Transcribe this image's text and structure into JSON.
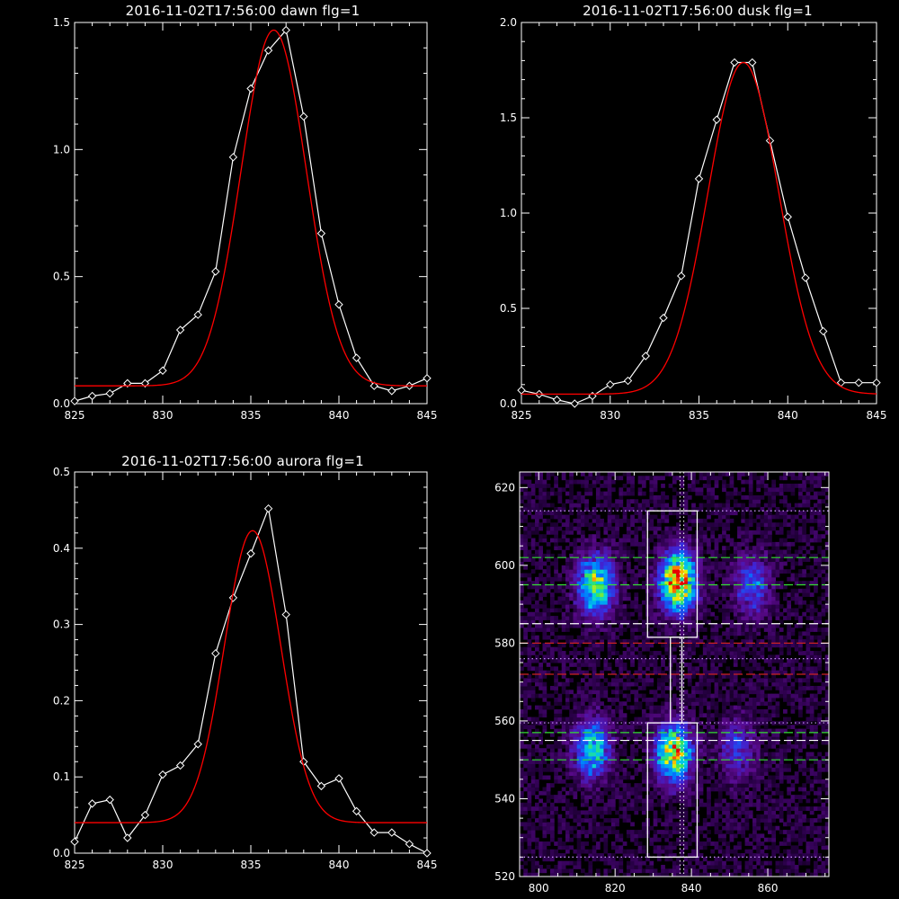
{
  "chart_data": [
    {
      "id": "dawn",
      "type": "line",
      "title": "2016-11-02T17:56:00 dawn flg=1",
      "xlim": [
        825,
        845
      ],
      "ylim": [
        0,
        1.5
      ],
      "xticks": [
        825,
        830,
        835,
        840,
        845
      ],
      "yticks": [
        0.0,
        0.5,
        1.0,
        1.5
      ],
      "ytick_labels": [
        "0.0",
        "0.5",
        "1.0",
        "1.5"
      ],
      "series": [
        {
          "kind": "observed",
          "color": "#ffffff",
          "marker": "diamond",
          "x": [
            825,
            826,
            827,
            828,
            829,
            830,
            831,
            832,
            833,
            834,
            835,
            836,
            837,
            838,
            839,
            840,
            841,
            842,
            843,
            844,
            845
          ],
          "y": [
            0.01,
            0.03,
            0.04,
            0.08,
            0.08,
            0.13,
            0.29,
            0.35,
            0.52,
            0.97,
            1.24,
            1.39,
            1.47,
            1.13,
            0.67,
            0.39,
            0.18,
            0.07,
            0.05,
            0.07,
            0.1
          ]
        },
        {
          "kind": "gaussian-fit",
          "color": "#ff0000",
          "center": 836.3,
          "amplitude": 1.4,
          "sigma": 1.85,
          "baseline": 0.07
        }
      ]
    },
    {
      "id": "dusk",
      "type": "line",
      "title": "2016-11-02T17:56:00 dusk flg=1",
      "xlim": [
        825,
        845
      ],
      "ylim": [
        0,
        2.0
      ],
      "xticks": [
        825,
        830,
        835,
        840,
        845
      ],
      "yticks": [
        0.0,
        0.5,
        1.0,
        1.5,
        2.0
      ],
      "ytick_labels": [
        "0.0",
        "0.5",
        "1.0",
        "1.5",
        "2.0"
      ],
      "series": [
        {
          "kind": "observed",
          "color": "#ffffff",
          "marker": "diamond",
          "x": [
            825,
            826,
            827,
            828,
            829,
            830,
            831,
            832,
            833,
            834,
            835,
            836,
            837,
            838,
            839,
            840,
            841,
            842,
            843,
            844,
            845
          ],
          "y": [
            0.07,
            0.05,
            0.02,
            0.0,
            0.04,
            0.1,
            0.12,
            0.25,
            0.45,
            0.67,
            1.18,
            1.49,
            1.79,
            1.79,
            1.38,
            0.98,
            0.66,
            0.38,
            0.11,
            0.11,
            0.11
          ]
        },
        {
          "kind": "gaussian-fit",
          "color": "#ff0000",
          "center": 837.5,
          "amplitude": 1.74,
          "sigma": 2.0,
          "baseline": 0.05
        }
      ]
    },
    {
      "id": "aurora",
      "type": "line",
      "title": "2016-11-02T17:56:00 aurora flg=1",
      "xlim": [
        825,
        845
      ],
      "ylim": [
        0,
        0.5
      ],
      "xticks": [
        825,
        830,
        835,
        840,
        845
      ],
      "yticks": [
        0.0,
        0.1,
        0.2,
        0.3,
        0.4,
        0.5
      ],
      "ytick_labels": [
        "0.0",
        "0.1",
        "0.2",
        "0.3",
        "0.4",
        "0.5"
      ],
      "series": [
        {
          "kind": "observed",
          "color": "#ffffff",
          "marker": "diamond",
          "x": [
            825,
            826,
            827,
            828,
            829,
            830,
            831,
            832,
            833,
            834,
            835,
            836,
            837,
            838,
            839,
            840,
            841,
            842,
            843,
            844,
            845
          ],
          "y": [
            0.015,
            0.065,
            0.07,
            0.02,
            0.05,
            0.103,
            0.115,
            0.143,
            0.262,
            0.335,
            0.393,
            0.452,
            0.313,
            0.12,
            0.088,
            0.098,
            0.055,
            0.027,
            0.027,
            0.012,
            0.0
          ]
        },
        {
          "kind": "gaussian-fit",
          "color": "#ff0000",
          "center": 835.1,
          "amplitude": 0.383,
          "sigma": 1.6,
          "baseline": 0.04
        }
      ]
    },
    {
      "id": "spectral-image",
      "type": "heatmap",
      "xlim": [
        795,
        876
      ],
      "ylim": [
        520,
        624
      ],
      "xticks": [
        800,
        820,
        840,
        860
      ],
      "yticks": [
        520,
        540,
        560,
        580,
        600,
        620
      ],
      "colormap": "rainbow-on-black",
      "blobs": [
        {
          "x": 815,
          "y": 595,
          "peak": 0.75
        },
        {
          "x": 836.5,
          "y": 596,
          "peak": 1.0
        },
        {
          "x": 856,
          "y": 595,
          "peak": 0.38
        },
        {
          "x": 814,
          "y": 553,
          "peak": 0.6
        },
        {
          "x": 835.5,
          "y": 552,
          "peak": 0.85
        },
        {
          "x": 852,
          "y": 553,
          "peak": 0.32
        }
      ],
      "boxes": [
        {
          "x": [
            828.5,
            841.5
          ],
          "y": [
            581.5,
            614
          ],
          "color": "#ffffff"
        },
        {
          "x": [
            828.5,
            841.5
          ],
          "y": [
            525,
            559.5
          ],
          "color": "#ffffff"
        },
        {
          "x": [
            834.5,
            837.5
          ],
          "y": [
            559.5,
            581.5
          ],
          "color": "#ffffff"
        }
      ],
      "hlines": [
        {
          "y": 614,
          "color": "#cc99ff",
          "style": "dotted"
        },
        {
          "y": 602,
          "color": "#33dd33",
          "style": "dashed"
        },
        {
          "y": 595,
          "color": "#33dd33",
          "style": "dashed"
        },
        {
          "y": 585,
          "color": "#ffffff",
          "style": "dashed"
        },
        {
          "y": 580,
          "color": "#cc2222",
          "style": "dashed"
        },
        {
          "y": 576,
          "color": "#cc99ff",
          "style": "dotted"
        },
        {
          "y": 572,
          "color": "#cc2222",
          "style": "dashed"
        },
        {
          "y": 559.5,
          "color": "#cc99ff",
          "style": "dotted"
        },
        {
          "y": 557,
          "color": "#33dd33",
          "style": "dashed"
        },
        {
          "y": 555,
          "color": "#ffffff",
          "style": "dashed"
        },
        {
          "y": 550,
          "color": "#33dd33",
          "style": "dashed"
        },
        {
          "y": 525,
          "color": "#cc99ff",
          "style": "dotted"
        }
      ],
      "vlines": [
        {
          "x": 837,
          "color": "#ffffff",
          "style": "dotted"
        },
        {
          "x": 838,
          "color": "#ffffff",
          "style": "dotted"
        }
      ]
    }
  ]
}
